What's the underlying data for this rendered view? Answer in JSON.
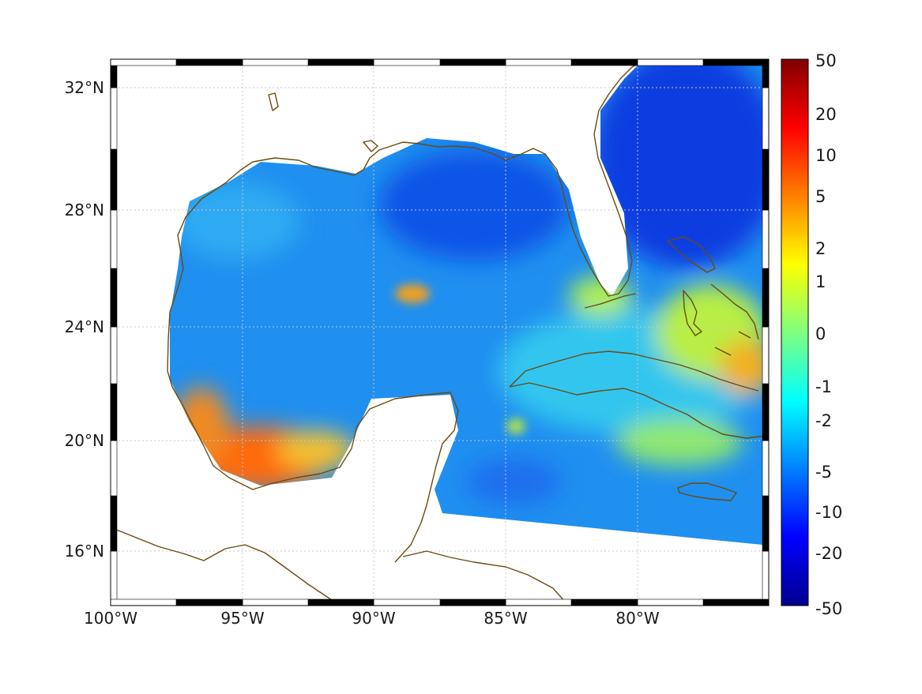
{
  "map": {
    "latitude_labels": [
      "32°N",
      "28°N",
      "24°N",
      "20°N",
      "16°N"
    ],
    "longitude_labels": [
      "100°W",
      "95°W",
      "90°W",
      "85°W",
      "80°W"
    ],
    "coastline_color": "#6b4a10",
    "grid": "dotted"
  },
  "colorbar": {
    "tick_labels": [
      "50",
      "20",
      "10",
      "5",
      "2",
      "1",
      "0",
      "-1",
      "-2",
      "-5",
      "-10",
      "-20",
      "-50"
    ],
    "colormap": "jet",
    "scale": "symmetric log-like"
  },
  "field_features": [
    {
      "region": "Bay of Campeche",
      "level": "5"
    },
    {
      "region": "Central Gulf eddy (~25°N, 89°W)",
      "level": "2"
    },
    {
      "region": "Southeast Bahamas (~23°N, 75°W)",
      "level": "5"
    },
    {
      "region": "Atlantic off Florida/Georgia",
      "level": "-10"
    }
  ]
}
